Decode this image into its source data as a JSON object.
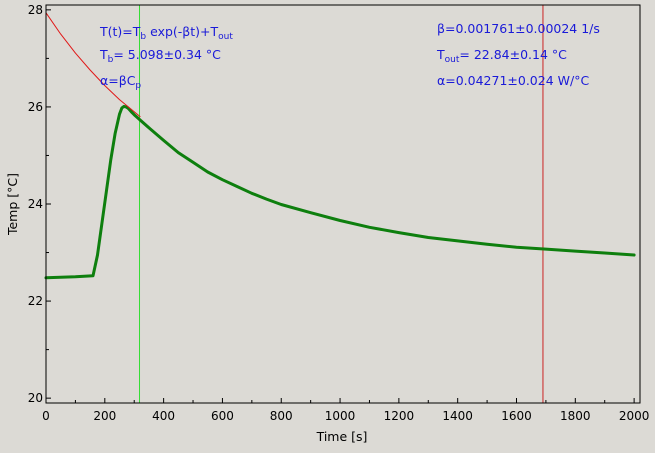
{
  "chart_data": {
    "type": "line",
    "title": "",
    "xlabel": "Time [s]",
    "ylabel": "Temp [°C]",
    "xlim": [
      0,
      2020
    ],
    "ylim": [
      19.9,
      28.1
    ],
    "grid": false,
    "x_ticks": [
      0,
      200,
      400,
      600,
      800,
      1000,
      1200,
      1400,
      1600,
      1800,
      2000
    ],
    "y_ticks": [
      20,
      22,
      24,
      26,
      28
    ],
    "colors": {
      "background": "#dcdad5",
      "measured": "#0e7f0e",
      "fit": "#e01818",
      "fit_start_marker": "#33dd33",
      "fit_end_marker": "#cc2222",
      "annotation_text": "#1a1ad8"
    },
    "series": [
      {
        "role": "measured",
        "x": [
          0,
          50,
          100,
          160,
          175,
          190,
          205,
          220,
          235,
          250,
          258,
          265,
          272,
          280,
          290,
          300,
          320,
          350,
          400,
          450,
          500,
          550,
          600,
          650,
          700,
          750,
          800,
          900,
          1000,
          1100,
          1200,
          1300,
          1400,
          1500,
          1600,
          1700,
          1800,
          1900,
          2000
        ],
        "y": [
          22.48,
          22.49,
          22.5,
          22.52,
          22.95,
          23.6,
          24.25,
          24.9,
          25.45,
          25.85,
          25.98,
          26.01,
          26.0,
          25.97,
          25.9,
          25.84,
          25.73,
          25.57,
          25.31,
          25.06,
          24.86,
          24.66,
          24.5,
          24.36,
          24.22,
          24.1,
          23.99,
          23.82,
          23.66,
          23.52,
          23.41,
          23.31,
          23.24,
          23.17,
          23.11,
          23.07,
          23.03,
          22.99,
          22.95
        ]
      },
      {
        "role": "fit",
        "x": [
          0,
          50,
          100,
          150,
          200,
          250,
          300,
          320
        ],
        "y": [
          27.94,
          27.5,
          27.11,
          26.76,
          26.44,
          26.15,
          25.9,
          25.8
        ]
      }
    ],
    "vlines": [
      {
        "role": "fit_start_marker",
        "x": 318
      },
      {
        "role": "fit_end_marker",
        "x": 1690
      }
    ],
    "annotations": {
      "model": {
        "pre": "T(t)=T",
        "sub1": "b",
        "mid": " exp(-βt)+T",
        "sub2": "out"
      },
      "tb": {
        "pre": "T",
        "sub": "b",
        "post": "= 5.098±0.34 °C"
      },
      "alpha": {
        "pre": "α=βC",
        "sub": "p"
      },
      "beta": "β=0.001761±0.00024 1/s",
      "tout": {
        "pre": "T",
        "sub": "out",
        "post": "= 22.84±0.14 °C"
      },
      "alpha_value": "α=0.04271±0.024 W/°C"
    }
  }
}
